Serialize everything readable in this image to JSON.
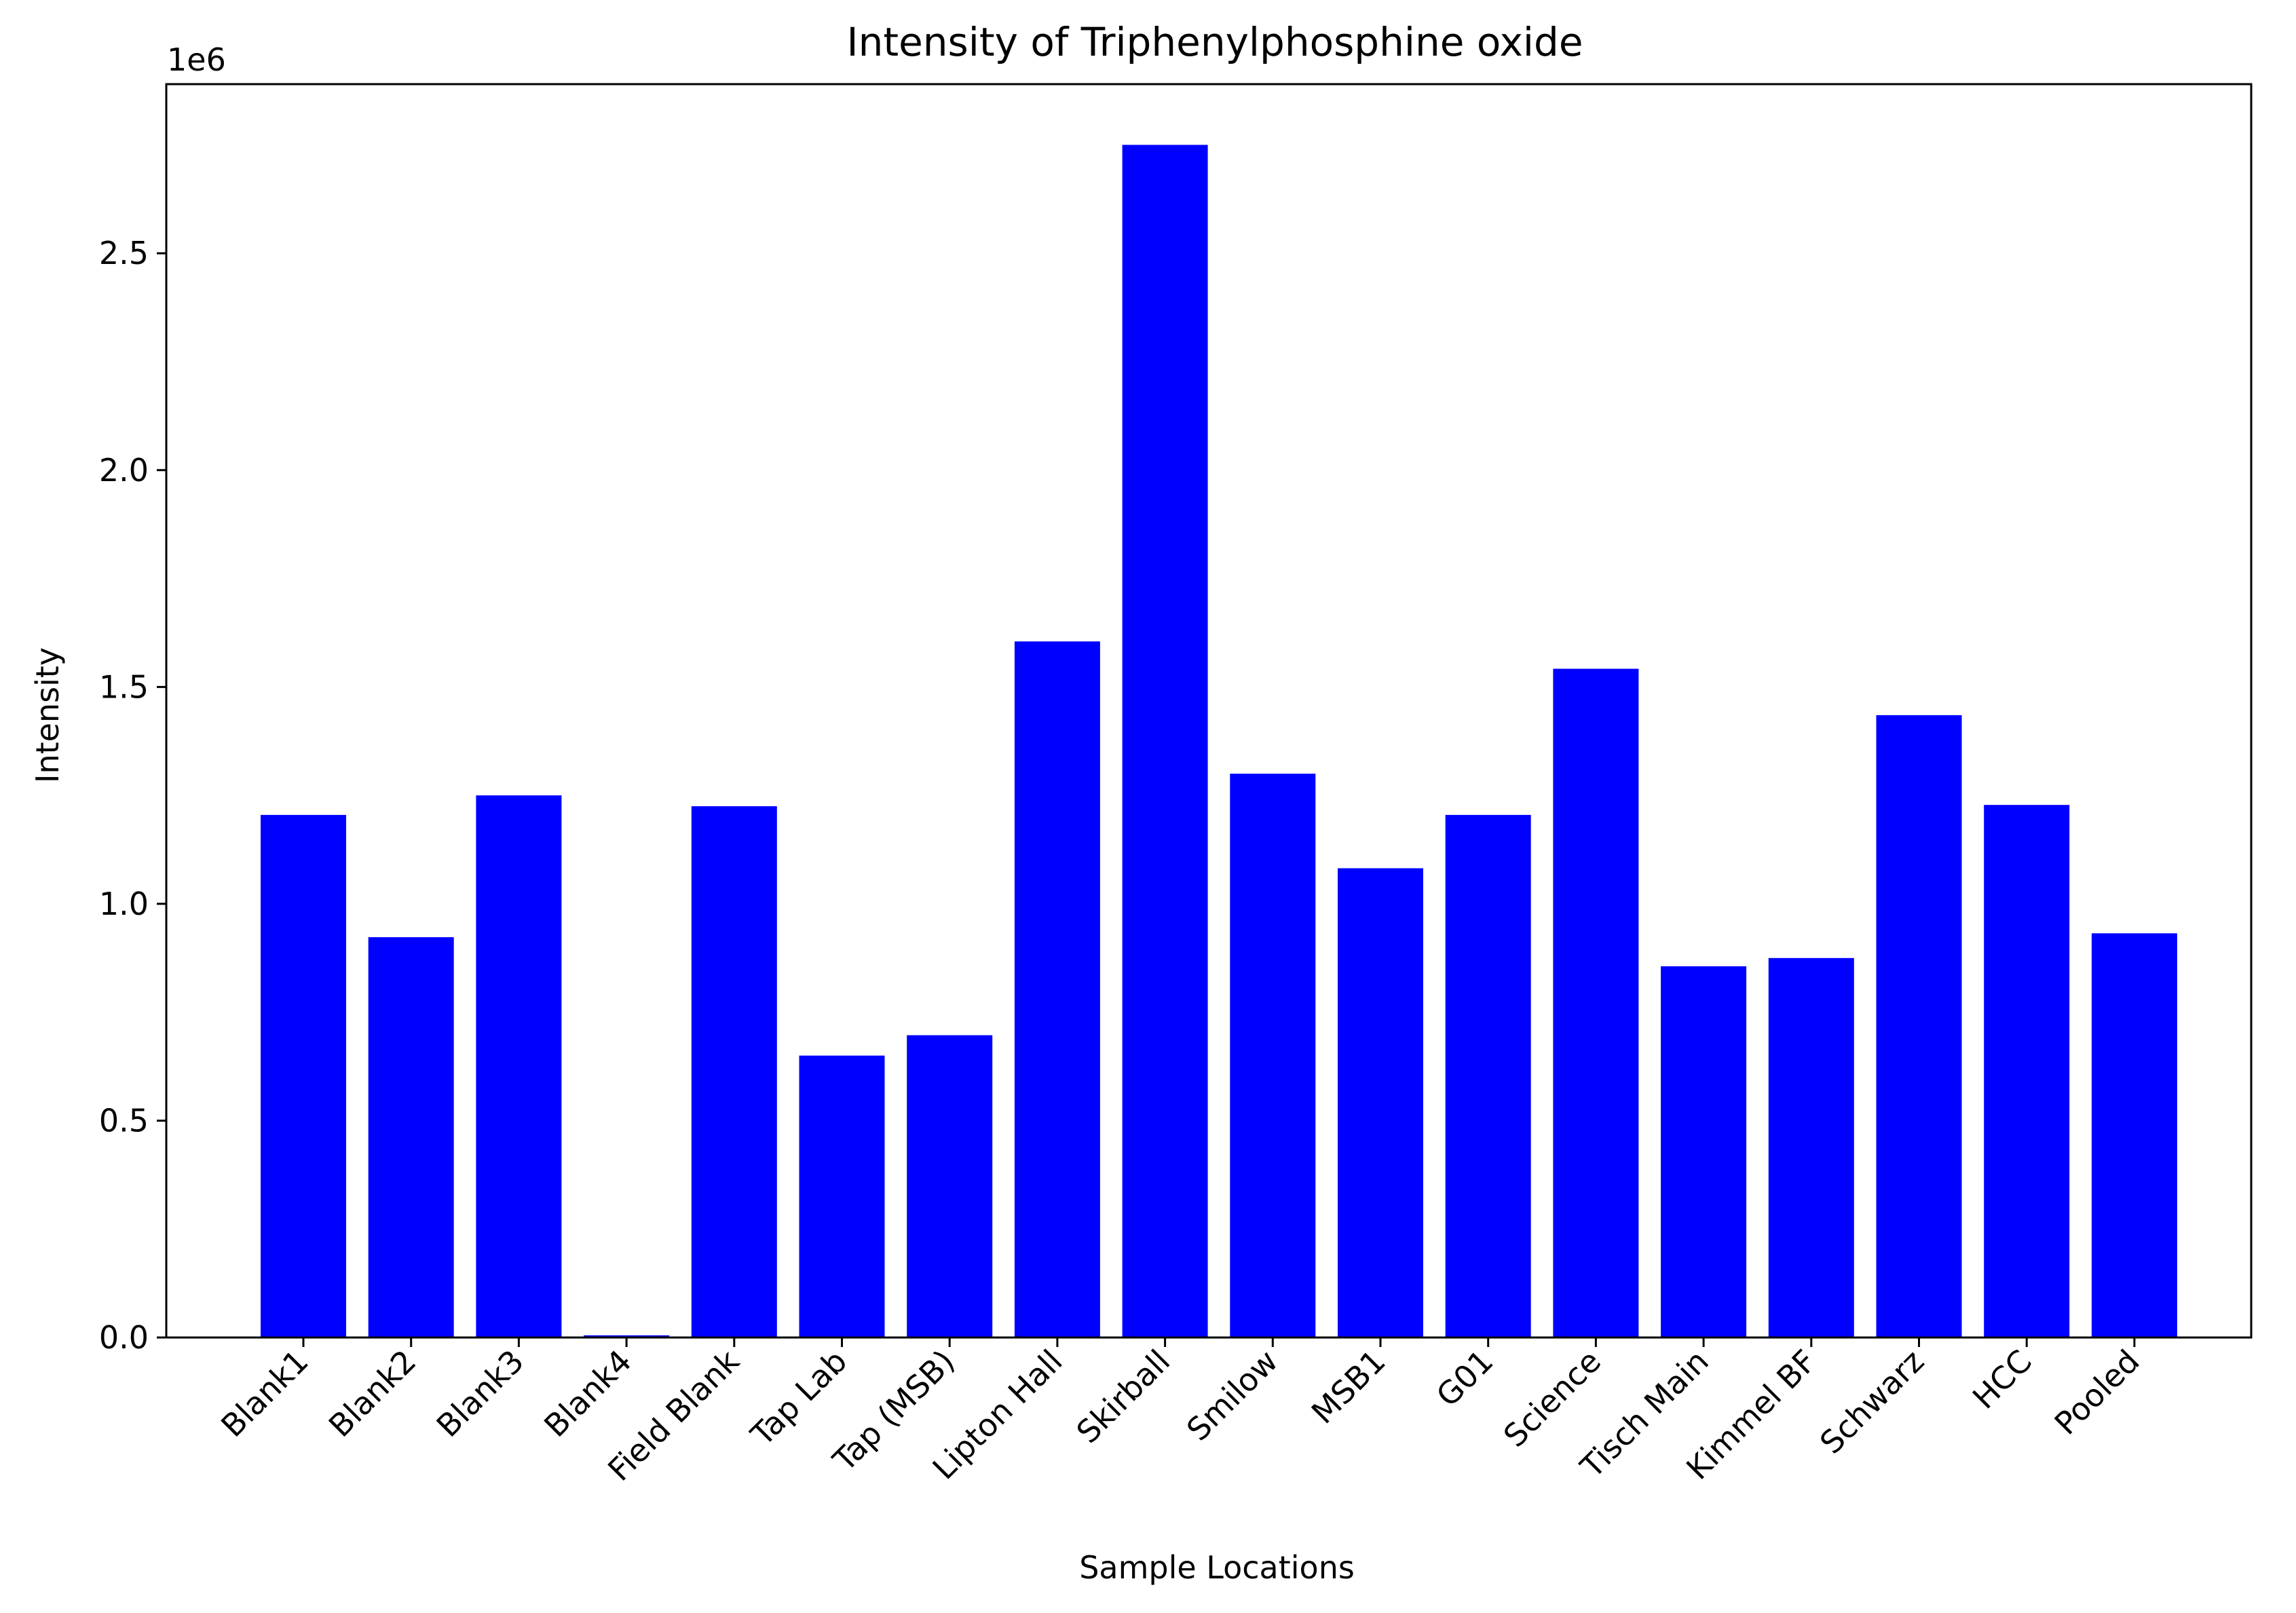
{
  "chart_data": {
    "type": "bar",
    "title": "Intensity of Triphenylphosphine oxide",
    "xlabel": "Sample Locations",
    "ylabel": "Intensity",
    "y_offset_label": "1e6",
    "categories": [
      "Blank1",
      "Blank2",
      "Blank3",
      "Blank4",
      "Field Blank",
      "Tap Lab",
      "Tap (MSB)",
      "Lipton Hall",
      "Skirball",
      "Smilow",
      "MSB1",
      "G01",
      "Science",
      "Tisch Main",
      "Kimmel BF",
      "Schwarz",
      "HCC",
      "Pooled"
    ],
    "values": [
      1205000,
      923000,
      1250000,
      5000,
      1225000,
      650000,
      697000,
      1605000,
      2750000,
      1300000,
      1082000,
      1205000,
      1542000,
      856000,
      875000,
      1435000,
      1228000,
      932000
    ],
    "ylim": [
      0,
      2890000
    ],
    "yticks": [
      0,
      500000,
      1000000,
      1500000,
      2000000,
      2500000
    ],
    "ytick_labels": [
      "0.0",
      "0.5",
      "1.0",
      "1.5",
      "2.0",
      "2.5"
    ],
    "bar_color": "#0000ff",
    "grid": false,
    "legend": "none"
  }
}
